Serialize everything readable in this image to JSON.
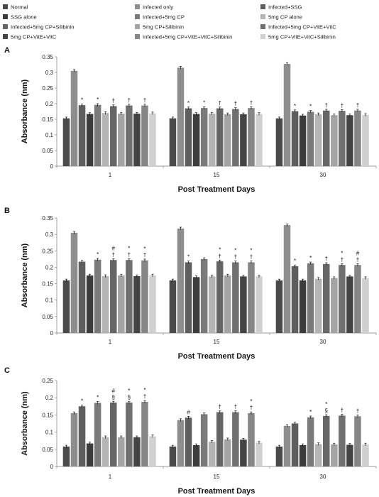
{
  "legend": [
    {
      "name": "Normal",
      "color": "#4a4a4a"
    },
    {
      "name": "Infected only",
      "color": "#8e8e8e"
    },
    {
      "name": "Infected+SSG",
      "color": "#5e5e5e"
    },
    {
      "name": "SSG alone",
      "color": "#3c3c3c"
    },
    {
      "name": "Infected+5mg CP",
      "color": "#7a7a7a"
    },
    {
      "name": "5mg CP alone",
      "color": "#b4b4b4"
    },
    {
      "name": "Infected+5mg CP+Silibinin",
      "color": "#666666"
    },
    {
      "name": "5mg CP+Silibinin",
      "color": "#a4a4a4"
    },
    {
      "name": "Infected+5mg CP+VitE+VitC",
      "color": "#707070"
    },
    {
      "name": "5mg CP+VitE+VitC",
      "color": "#444444"
    },
    {
      "name": "Infected+5mg CP+VitE+VitC+Silibinin",
      "color": "#868686"
    },
    {
      "name": "5mg CP+VitE+VitC+Silibinin",
      "color": "#d0d0d0"
    }
  ],
  "chart_data": [
    {
      "panel": "A",
      "type": "bar",
      "categories": [
        "1",
        "15",
        "30"
      ],
      "xlabel": "Post Treatment Days",
      "ylabel": "Absorbance (nm)",
      "ylim": [
        0,
        0.35
      ],
      "yticks": [
        "0",
        "0.05",
        "0.1",
        "0.15",
        "0.2",
        "0.25",
        "0.3",
        "0.35"
      ],
      "series": [
        {
          "name": "Normal",
          "values": [
            0.153,
            0.153,
            0.153
          ]
        },
        {
          "name": "Infected only",
          "values": [
            0.305,
            0.315,
            0.327
          ]
        },
        {
          "name": "Infected+SSG",
          "values": [
            0.195,
            0.185,
            0.176
          ]
        },
        {
          "name": "SSG alone",
          "values": [
            0.167,
            0.167,
            0.162
          ]
        },
        {
          "name": "Infected+5mg CP",
          "values": [
            0.196,
            0.186,
            0.174
          ]
        },
        {
          "name": "5mg CP alone",
          "values": [
            0.17,
            0.168,
            0.166
          ]
        },
        {
          "name": "Infected+5mg CP+Silibinin",
          "values": [
            0.192,
            0.185,
            0.178
          ]
        },
        {
          "name": "5mg CP+Silibinin",
          "values": [
            0.168,
            0.166,
            0.163
          ]
        },
        {
          "name": "Infected+5mg CP+VitE+VitC",
          "values": [
            0.194,
            0.183,
            0.177
          ]
        },
        {
          "name": "5mg CP+VitE+VitC",
          "values": [
            0.168,
            0.166,
            0.163
          ]
        },
        {
          "name": "Infected+5mg CP+VitE+VitC+Silibinin",
          "values": [
            0.194,
            0.186,
            0.178
          ]
        },
        {
          "name": "5mg CP+VitE+VitC+Silibinin",
          "values": [
            0.169,
            0.167,
            0.164
          ]
        }
      ],
      "annotations": [
        {
          "category": 0,
          "series": 2,
          "text": "*"
        },
        {
          "category": 0,
          "series": 4,
          "text": "*"
        },
        {
          "category": 0,
          "series": 6,
          "text": "†"
        },
        {
          "category": 0,
          "series": 8,
          "text": "†"
        },
        {
          "category": 0,
          "series": 10,
          "text": "†"
        },
        {
          "category": 1,
          "series": 2,
          "text": "*"
        },
        {
          "category": 1,
          "series": 4,
          "text": "*"
        },
        {
          "category": 1,
          "series": 6,
          "text": "†"
        },
        {
          "category": 1,
          "series": 8,
          "text": "†"
        },
        {
          "category": 1,
          "series": 10,
          "text": "†"
        },
        {
          "category": 2,
          "series": 2,
          "text": "*"
        },
        {
          "category": 2,
          "series": 4,
          "text": "*"
        },
        {
          "category": 2,
          "series": 6,
          "text": "†"
        },
        {
          "category": 2,
          "series": 8,
          "text": "†"
        },
        {
          "category": 2,
          "series": 10,
          "text": "†"
        }
      ]
    },
    {
      "panel": "B",
      "type": "bar",
      "categories": [
        "1",
        "15",
        "30"
      ],
      "xlabel": "Post Treatment Days",
      "ylabel": "Absorbance (nm)",
      "ylim": [
        0,
        0.35
      ],
      "yticks": [
        "0",
        "0.05",
        "0.1",
        "0.15",
        "0.2",
        "0.25",
        "0.3",
        "0.35"
      ],
      "series": [
        {
          "name": "Normal",
          "values": [
            0.16,
            0.16,
            0.16
          ]
        },
        {
          "name": "Infected only",
          "values": [
            0.305,
            0.318,
            0.328
          ]
        },
        {
          "name": "Infected+SSG",
          "values": [
            0.217,
            0.215,
            0.203
          ]
        },
        {
          "name": "SSG alone",
          "values": [
            0.175,
            0.17,
            0.16
          ]
        },
        {
          "name": "Infected+5mg CP",
          "values": [
            0.223,
            0.225,
            0.212
          ]
        },
        {
          "name": "5mg CP alone",
          "values": [
            0.173,
            0.172,
            0.165
          ]
        },
        {
          "name": "Infected+5mg CP+Silibinin",
          "values": [
            0.222,
            0.218,
            0.21
          ]
        },
        {
          "name": "5mg CP+Silibinin",
          "values": [
            0.175,
            0.175,
            0.167
          ]
        },
        {
          "name": "Infected+5mg CP+VitE+VitC",
          "values": [
            0.222,
            0.215,
            0.207
          ]
        },
        {
          "name": "5mg CP+VitE+VitC",
          "values": [
            0.173,
            0.172,
            0.172
          ]
        },
        {
          "name": "Infected+5mg CP+VitE+VitC+Silibinin",
          "values": [
            0.221,
            0.215,
            0.207
          ]
        },
        {
          "name": "5mg CP+VitE+VitC+Silibinin",
          "values": [
            0.175,
            0.172,
            0.167
          ]
        }
      ],
      "annotations": [
        {
          "category": 0,
          "series": 4,
          "text": "*"
        },
        {
          "category": 0,
          "series": 6,
          "text": "#"
        },
        {
          "category": 0,
          "series": 6,
          "text": "†"
        },
        {
          "category": 0,
          "series": 8,
          "text": "*"
        },
        {
          "category": 0,
          "series": 8,
          "text": "†"
        },
        {
          "category": 0,
          "series": 10,
          "text": "*"
        },
        {
          "category": 0,
          "series": 10,
          "text": "†"
        },
        {
          "category": 1,
          "series": 2,
          "text": "*"
        },
        {
          "category": 1,
          "series": 6,
          "text": "*"
        },
        {
          "category": 1,
          "series": 6,
          "text": "†"
        },
        {
          "category": 1,
          "series": 8,
          "text": "*"
        },
        {
          "category": 1,
          "series": 8,
          "text": "†"
        },
        {
          "category": 1,
          "series": 10,
          "text": "*"
        },
        {
          "category": 1,
          "series": 10,
          "text": "†"
        },
        {
          "category": 2,
          "series": 2,
          "text": "*"
        },
        {
          "category": 2,
          "series": 4,
          "text": "*"
        },
        {
          "category": 2,
          "series": 6,
          "text": "†"
        },
        {
          "category": 2,
          "series": 8,
          "text": "*"
        },
        {
          "category": 2,
          "series": 8,
          "text": "†"
        },
        {
          "category": 2,
          "series": 10,
          "text": "#"
        },
        {
          "category": 2,
          "series": 10,
          "text": "†"
        }
      ]
    },
    {
      "panel": "C",
      "type": "bar",
      "categories": [
        "1",
        "15",
        "30"
      ],
      "xlabel": "Post Treatment Days",
      "ylabel": "Absorbance (nm)",
      "ylim": [
        0,
        0.25
      ],
      "yticks": [
        "0",
        "0.05",
        "0.1",
        "0.15",
        "0.2",
        "0.25"
      ],
      "series": [
        {
          "name": "Normal",
          "values": [
            0.058,
            0.058,
            0.058
          ]
        },
        {
          "name": "Infected only",
          "values": [
            0.155,
            0.135,
            0.118
          ]
        },
        {
          "name": "Infected+SSG",
          "values": [
            0.175,
            0.142,
            0.125
          ]
        },
        {
          "name": "SSG alone",
          "values": [
            0.067,
            0.062,
            0.062
          ]
        },
        {
          "name": "Infected+5mg CP",
          "values": [
            0.185,
            0.152,
            0.143
          ]
        },
        {
          "name": "5mg CP alone",
          "values": [
            0.085,
            0.072,
            0.065
          ]
        },
        {
          "name": "Infected+5mg CP+Silibinin",
          "values": [
            0.186,
            0.158,
            0.147
          ]
        },
        {
          "name": "5mg CP+Silibinin",
          "values": [
            0.085,
            0.079,
            0.064
          ]
        },
        {
          "name": "Infected+5mg CP+VitE+VitC",
          "values": [
            0.186,
            0.158,
            0.148
          ]
        },
        {
          "name": "5mg CP+VitE+VitC",
          "values": [
            0.085,
            0.078,
            0.063
          ]
        },
        {
          "name": "Infected+5mg CP+VitE+VitC+Silibinin",
          "values": [
            0.188,
            0.155,
            0.146
          ]
        },
        {
          "name": "5mg CP+VitE+VitC+Silibinin",
          "values": [
            0.088,
            0.069,
            0.064
          ]
        }
      ],
      "annotations": [
        {
          "category": 0,
          "series": 2,
          "text": "*"
        },
        {
          "category": 0,
          "series": 4,
          "text": "*"
        },
        {
          "category": 0,
          "series": 6,
          "text": "#"
        },
        {
          "category": 0,
          "series": 6,
          "text": "§"
        },
        {
          "category": 0,
          "series": 8,
          "text": "*"
        },
        {
          "category": 0,
          "series": 8,
          "text": "§"
        },
        {
          "category": 0,
          "series": 10,
          "text": "*"
        },
        {
          "category": 0,
          "series": 10,
          "text": "†"
        },
        {
          "category": 1,
          "series": 2,
          "text": "#"
        },
        {
          "category": 1,
          "series": 6,
          "text": "†"
        },
        {
          "category": 1,
          "series": 8,
          "text": "†"
        },
        {
          "category": 1,
          "series": 10,
          "text": "*"
        },
        {
          "category": 1,
          "series": 10,
          "text": "†"
        },
        {
          "category": 2,
          "series": 4,
          "text": "*"
        },
        {
          "category": 2,
          "series": 6,
          "text": "*"
        },
        {
          "category": 2,
          "series": 6,
          "text": "§"
        },
        {
          "category": 2,
          "series": 8,
          "text": "†"
        },
        {
          "category": 2,
          "series": 10,
          "text": "†"
        }
      ]
    }
  ]
}
